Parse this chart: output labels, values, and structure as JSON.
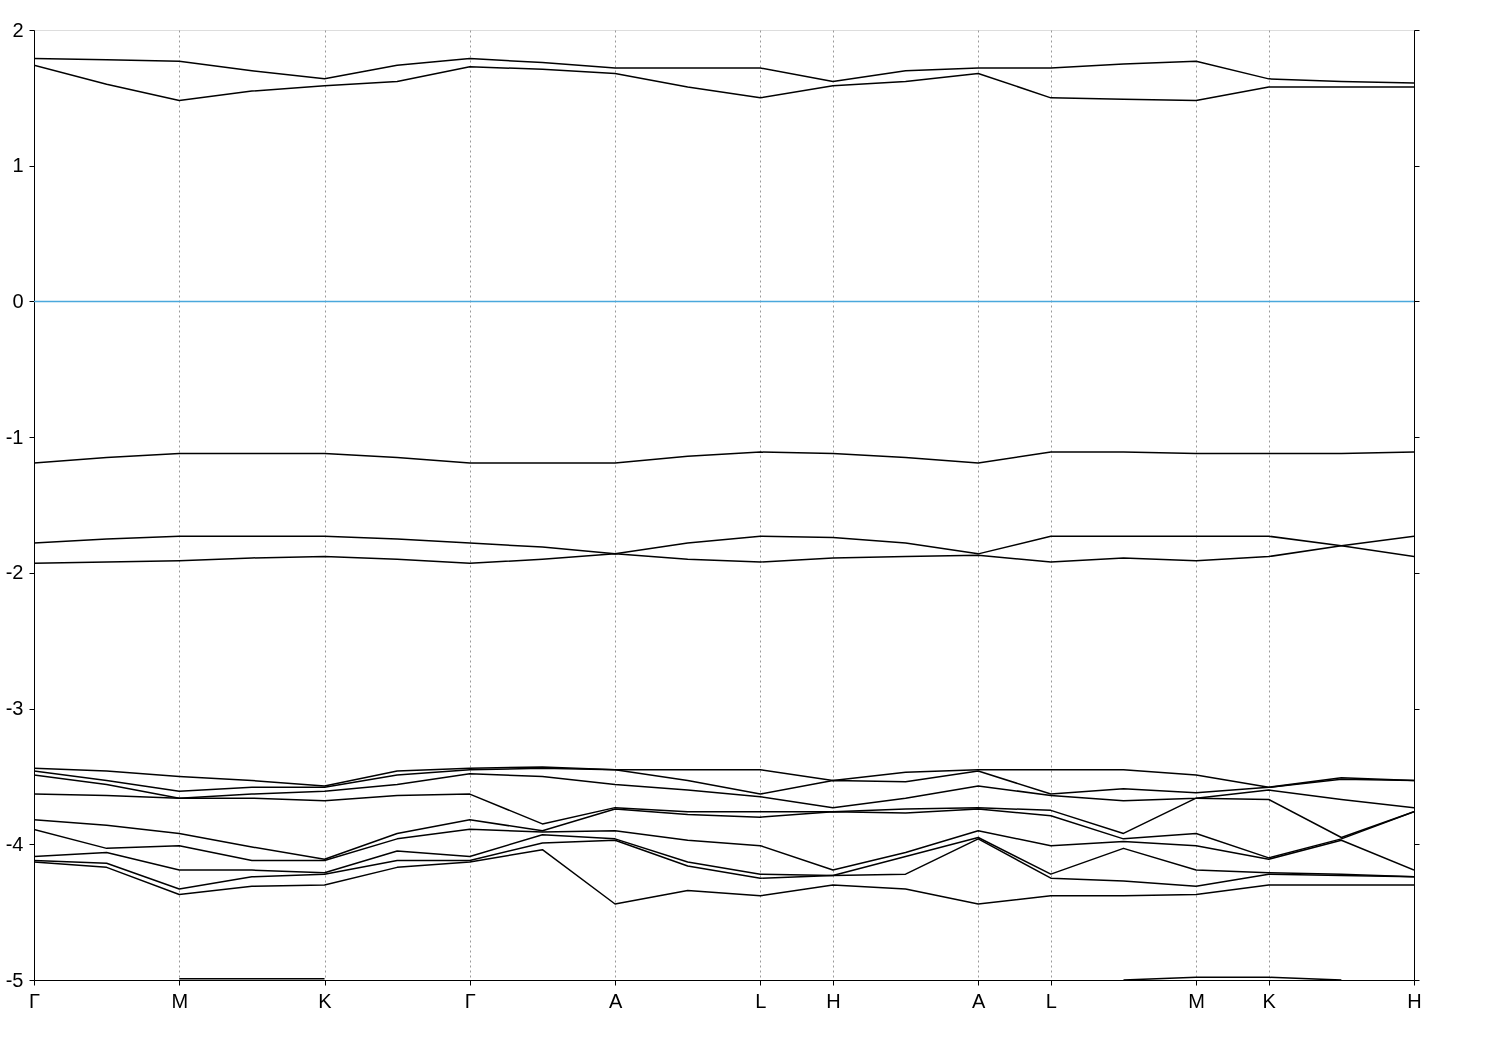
{
  "chart_data": {
    "type": "line",
    "categories": [
      "Γ",
      null,
      "M",
      null,
      "K",
      null,
      "Γ",
      null,
      "A",
      null,
      "L",
      "H",
      null,
      "A",
      "L",
      null,
      "M",
      "K",
      null,
      "H"
    ],
    "ylim": [
      -5,
      2
    ],
    "yticks": [
      -5,
      -4,
      -3,
      -2,
      -1,
      0,
      1,
      2
    ],
    "grid": "x",
    "marker": "none",
    "line_style": "solid",
    "ref_lines": [
      {
        "axis": "y",
        "value": 0,
        "color": "#4aa8dc"
      }
    ],
    "series": [
      {
        "color": "#000000",
        "values": [
          1.79,
          1.78,
          1.77,
          1.7,
          1.64,
          1.74,
          1.79,
          1.76,
          1.72,
          1.72,
          1.72,
          1.62,
          1.7,
          1.72,
          1.72,
          1.75,
          1.77,
          1.64,
          1.62,
          1.61
        ]
      },
      {
        "color": "#000000",
        "values": [
          1.74,
          1.6,
          1.48,
          1.55,
          1.59,
          1.62,
          1.73,
          1.71,
          1.68,
          1.58,
          1.5,
          1.59,
          1.62,
          1.68,
          1.5,
          1.49,
          1.48,
          1.58,
          1.58,
          1.58
        ]
      },
      {
        "color": "#000000",
        "values": [
          -1.19,
          -1.15,
          -1.12,
          -1.12,
          -1.12,
          -1.15,
          -1.19,
          -1.19,
          -1.19,
          -1.14,
          -1.11,
          -1.12,
          -1.15,
          -1.19,
          -1.11,
          -1.11,
          -1.12,
          -1.12,
          -1.12,
          -1.11
        ]
      },
      {
        "color": "#000000",
        "values": [
          -1.78,
          -1.75,
          -1.73,
          -1.73,
          -1.73,
          -1.75,
          -1.78,
          -1.81,
          -1.86,
          -1.78,
          -1.73,
          -1.74,
          -1.78,
          -1.86,
          -1.73,
          -1.73,
          -1.73,
          -1.73,
          -1.8,
          -1.88
        ]
      },
      {
        "color": "#000000",
        "values": [
          -1.93,
          -1.92,
          -1.91,
          -1.89,
          -1.88,
          -1.9,
          -1.93,
          -1.9,
          -1.86,
          -1.9,
          -1.92,
          -1.89,
          -1.88,
          -1.87,
          -1.92,
          -1.89,
          -1.91,
          -1.88,
          -1.8,
          -1.73
        ]
      },
      {
        "color": "#000000",
        "values": [
          -3.44,
          -3.46,
          -3.5,
          -3.53,
          -3.57,
          -3.46,
          -3.44,
          -3.43,
          -3.45,
          -3.45,
          -3.45,
          -3.53,
          -3.47,
          -3.45,
          -3.45,
          -3.45,
          -3.49,
          -3.58,
          -3.51,
          -3.53
        ]
      },
      {
        "color": "#000000",
        "values": [
          -3.46,
          -3.53,
          -3.61,
          -3.58,
          -3.58,
          -3.49,
          -3.45,
          -3.44,
          -3.45,
          -3.53,
          -3.63,
          -3.53,
          -3.54,
          -3.46,
          -3.63,
          -3.59,
          -3.62,
          -3.58,
          -3.52,
          -3.53
        ]
      },
      {
        "color": "#000000",
        "values": [
          -3.49,
          -3.56,
          -3.66,
          -3.63,
          -3.61,
          -3.56,
          -3.48,
          -3.5,
          -3.56,
          -3.6,
          -3.65,
          -3.73,
          -3.66,
          -3.57,
          -3.64,
          -3.68,
          -3.66,
          -3.6,
          -3.67,
          -3.73
        ]
      },
      {
        "color": "#000000",
        "values": [
          -3.63,
          -3.64,
          -3.66,
          -3.66,
          -3.68,
          -3.64,
          -3.63,
          -3.85,
          -3.73,
          -3.76,
          -3.76,
          -3.76,
          -3.74,
          -3.73,
          -3.75,
          -3.92,
          -3.66,
          -3.67,
          -3.95,
          -3.76
        ]
      },
      {
        "color": "#000000",
        "values": [
          -3.82,
          -3.86,
          -3.92,
          -4.02,
          -4.11,
          -3.92,
          -3.82,
          -3.9,
          -3.74,
          -3.78,
          -3.8,
          -3.76,
          -3.77,
          -3.74,
          -3.79,
          -3.96,
          -3.92,
          -4.1,
          -3.96,
          -3.76
        ]
      },
      {
        "color": "#000000",
        "values": [
          -3.89,
          -4.03,
          -4.01,
          -4.12,
          -4.12,
          -3.96,
          -3.89,
          -3.91,
          -3.9,
          -3.97,
          -4.01,
          -4.19,
          -4.06,
          -3.9,
          -4.01,
          -3.98,
          -4.01,
          -4.11,
          -3.97,
          -4.19
        ]
      },
      {
        "color": "#000000",
        "values": [
          -4.09,
          -4.06,
          -4.19,
          -4.19,
          -4.21,
          -4.05,
          -4.09,
          -3.93,
          -3.96,
          -4.13,
          -4.22,
          -4.23,
          -4.09,
          -3.95,
          -4.22,
          -4.03,
          -4.19,
          -4.21,
          -4.22,
          -4.24
        ]
      },
      {
        "color": "#000000",
        "values": [
          -4.12,
          -4.14,
          -4.33,
          -4.24,
          -4.22,
          -4.12,
          -4.12,
          -3.99,
          -3.97,
          -4.16,
          -4.25,
          -4.23,
          -4.22,
          -3.96,
          -4.25,
          -4.27,
          -4.31,
          -4.22,
          -4.23,
          -4.24
        ]
      },
      {
        "color": "#000000",
        "values": [
          -4.13,
          -4.17,
          -4.37,
          -4.31,
          -4.3,
          -4.17,
          -4.13,
          -4.04,
          -4.44,
          -4.34,
          -4.38,
          -4.3,
          -4.33,
          -4.44,
          -4.38,
          -4.38,
          -4.37,
          -4.3,
          -4.3,
          -4.3
        ]
      },
      {
        "color": "#000000",
        "values": [
          null,
          null,
          -4.99,
          -4.99,
          -4.99,
          null,
          null,
          null,
          null,
          null,
          null,
          null,
          null,
          null,
          null,
          null,
          null,
          null,
          null,
          null
        ]
      },
      {
        "color": "#000000",
        "values": [
          null,
          null,
          null,
          null,
          null,
          null,
          null,
          null,
          null,
          null,
          null,
          null,
          null,
          null,
          null,
          -5.0,
          -4.98,
          -4.98,
          -5.0,
          null
        ]
      }
    ]
  }
}
